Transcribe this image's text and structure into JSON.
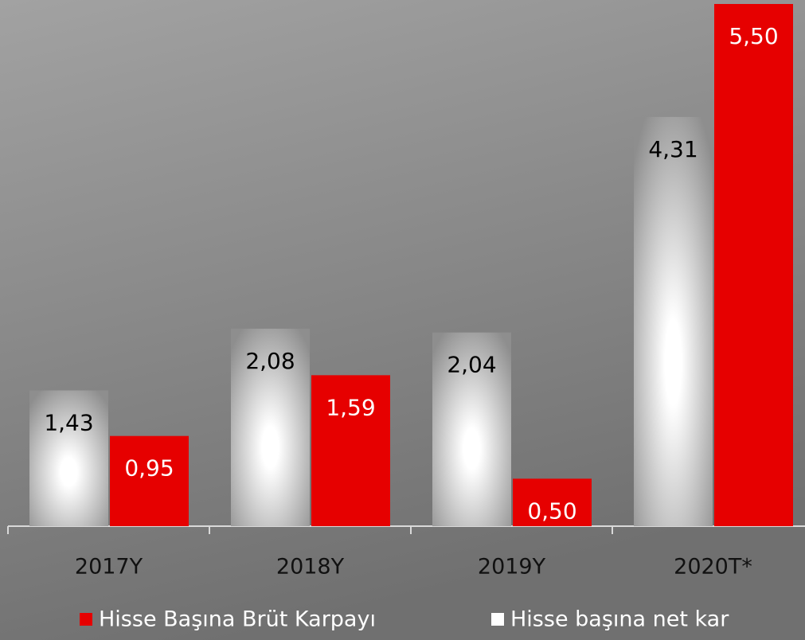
{
  "chart_data": {
    "type": "bar",
    "categories": [
      "2017Y",
      "2018Y",
      "2019Y",
      "2020T*"
    ],
    "series": [
      {
        "name": "Hisse başına net kar",
        "color": "#ffffff",
        "values": [
          1.43,
          2.08,
          2.04,
          4.31
        ],
        "value_labels": [
          "1,43",
          "2,08",
          "2,04",
          "4,31"
        ]
      },
      {
        "name": "Hisse Başına Brüt Karpayı",
        "color": "#e60000",
        "values": [
          0.95,
          1.59,
          0.5,
          5.5
        ],
        "value_labels": [
          "0,95",
          "1,59",
          "0,50",
          "5,50"
        ]
      }
    ]
  }
}
